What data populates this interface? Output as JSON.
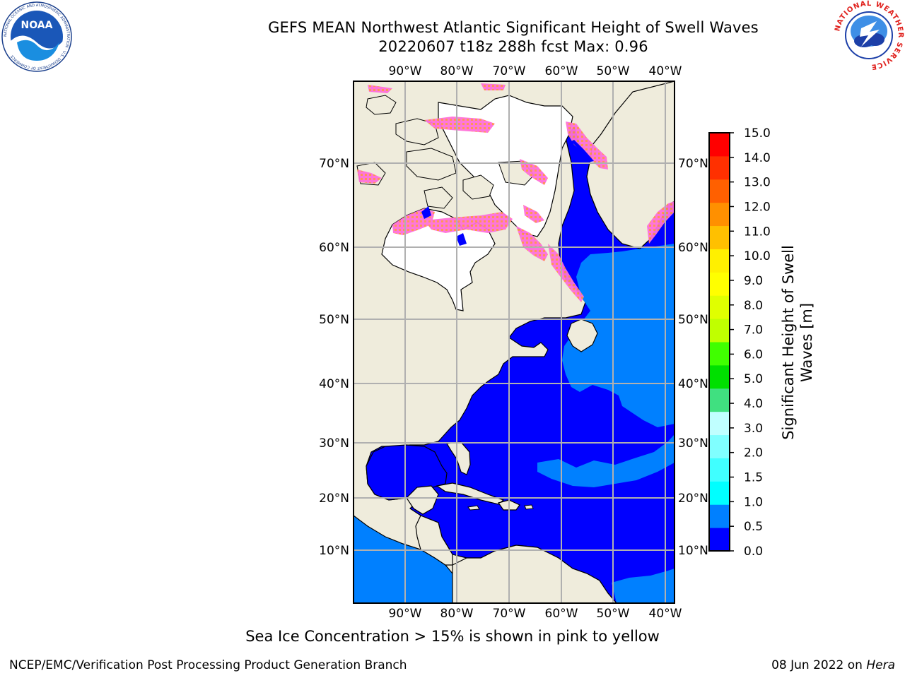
{
  "title": {
    "line1": "GEFS MEAN Northwest Atlantic Significant Height of Swell Waves",
    "line2": "20220607 t18z 288h fcst   Max: 0.96"
  },
  "axes": {
    "lon_labels": [
      "90°W",
      "80°W",
      "70°W",
      "60°W",
      "50°W",
      "40°W"
    ],
    "lat_labels": [
      "70°N",
      "60°N",
      "50°N",
      "40°N",
      "30°N",
      "20°N",
      "10°N"
    ]
  },
  "colorbar": {
    "label_line1": "Significant Height of Swell",
    "label_line2": "Waves [m]",
    "ticks": [
      "15.0",
      "14.0",
      "13.0",
      "12.0",
      "11.0",
      "10.0",
      "9.0",
      "8.0",
      "7.0",
      "6.0",
      "5.0",
      "4.0",
      "3.0",
      "2.0",
      "1.5",
      "1.0",
      "0.5",
      "0.0"
    ],
    "colors": [
      "#0000ff",
      "#0080ff",
      "#00ffff",
      "#40ffff",
      "#80ffff",
      "#c0ffff",
      "#40e080",
      "#00e000",
      "#40ff00",
      "#c0ff00",
      "#e0ff00",
      "#ffff00",
      "#fff000",
      "#ffc000",
      "#ff9000",
      "#ff6000",
      "#ff3000",
      "#ff0000"
    ]
  },
  "caption": "Sea Ice Concentration > 15% is shown in pink to yellow",
  "footer": {
    "left": "NCEP/EMC/Verification Post Processing Product Generation Branch",
    "date": "08 Jun 2022 on ",
    "host": "Hera"
  },
  "logos": {
    "noaa_text": "NOAA",
    "noaa_ring": "NATIONAL OCEANIC AND ATMOSPHERIC ADMINISTRATION · U.S. DEPARTMENT OF COMMERCE",
    "nws_ring": "NATIONAL WEATHER SERVICE"
  },
  "map_colors": {
    "land": "#efecdc",
    "ocean_low": "#0000ff",
    "ocean_mid": "#0080ff",
    "ice": "#ff66d0",
    "ice_edge": "#ffb030",
    "grid": "#b0b0b0"
  }
}
